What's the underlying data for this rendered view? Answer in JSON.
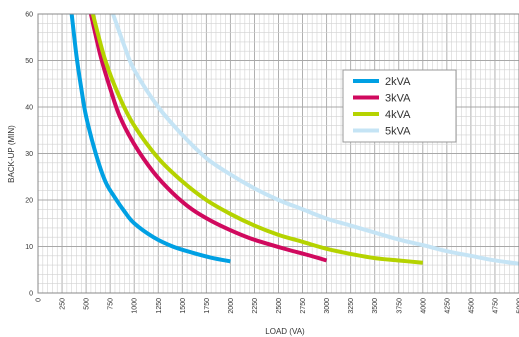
{
  "chart_data": {
    "type": "line",
    "xlabel": "LOAD (VA)",
    "ylabel": "BACK-UP (MIN)",
    "xlim": [
      0,
      5000
    ],
    "ylim": [
      0,
      60
    ],
    "x_ticks": [
      "0",
      "250",
      "500",
      "750",
      "1000",
      "1250",
      "1500",
      "1750",
      "2000",
      "2250",
      "2500",
      "2750",
      "3000",
      "3250",
      "3500",
      "3750",
      "4000",
      "4250",
      "4500",
      "4750",
      "5000"
    ],
    "y_ticks": [
      "0",
      "10",
      "20",
      "30",
      "40",
      "50",
      "60"
    ],
    "grid": true,
    "legend_position": "upper-right",
    "series": [
      {
        "name": "2kVA",
        "color": "#00a0e3",
        "points": [
          [
            350,
            60
          ],
          [
            400,
            51
          ],
          [
            450,
            44
          ],
          [
            500,
            38
          ],
          [
            600,
            30
          ],
          [
            700,
            24
          ],
          [
            800,
            20.5
          ],
          [
            900,
            17.5
          ],
          [
            1000,
            15
          ],
          [
            1200,
            12
          ],
          [
            1400,
            10
          ],
          [
            1600,
            8.7
          ],
          [
            1800,
            7.6
          ],
          [
            2000,
            6.8
          ]
        ]
      },
      {
        "name": "3kVA",
        "color": "#d0095e",
        "points": [
          [
            550,
            60
          ],
          [
            650,
            51
          ],
          [
            750,
            44
          ],
          [
            850,
            38
          ],
          [
            1000,
            32
          ],
          [
            1200,
            26
          ],
          [
            1400,
            21.5
          ],
          [
            1600,
            18
          ],
          [
            1800,
            15.5
          ],
          [
            2000,
            13.5
          ],
          [
            2200,
            11.8
          ],
          [
            2400,
            10.5
          ],
          [
            2600,
            9.3
          ],
          [
            2800,
            8.2
          ],
          [
            3000,
            7
          ]
        ]
      },
      {
        "name": "4kVA",
        "color": "#b5d300",
        "points": [
          [
            570,
            60
          ],
          [
            700,
            50
          ],
          [
            850,
            42
          ],
          [
            1000,
            36
          ],
          [
            1250,
            29
          ],
          [
            1500,
            24
          ],
          [
            1750,
            20
          ],
          [
            2000,
            17
          ],
          [
            2250,
            14.5
          ],
          [
            2500,
            12.5
          ],
          [
            2750,
            11
          ],
          [
            3000,
            9.5
          ],
          [
            3250,
            8.4
          ],
          [
            3500,
            7.5
          ],
          [
            3750,
            7
          ],
          [
            4000,
            6.5
          ]
        ]
      },
      {
        "name": "5kVA",
        "color": "#c5e4f5",
        "points": [
          [
            780,
            60
          ],
          [
            900,
            53
          ],
          [
            1000,
            48
          ],
          [
            1250,
            40
          ],
          [
            1500,
            34
          ],
          [
            1750,
            29
          ],
          [
            2000,
            25.5
          ],
          [
            2250,
            22.5
          ],
          [
            2500,
            20
          ],
          [
            2750,
            18
          ],
          [
            3000,
            16
          ],
          [
            3250,
            14.5
          ],
          [
            3500,
            13
          ],
          [
            3750,
            11.5
          ],
          [
            4000,
            10.3
          ],
          [
            4250,
            9
          ],
          [
            4500,
            8
          ],
          [
            4750,
            7
          ],
          [
            5000,
            6.3
          ]
        ]
      }
    ]
  }
}
